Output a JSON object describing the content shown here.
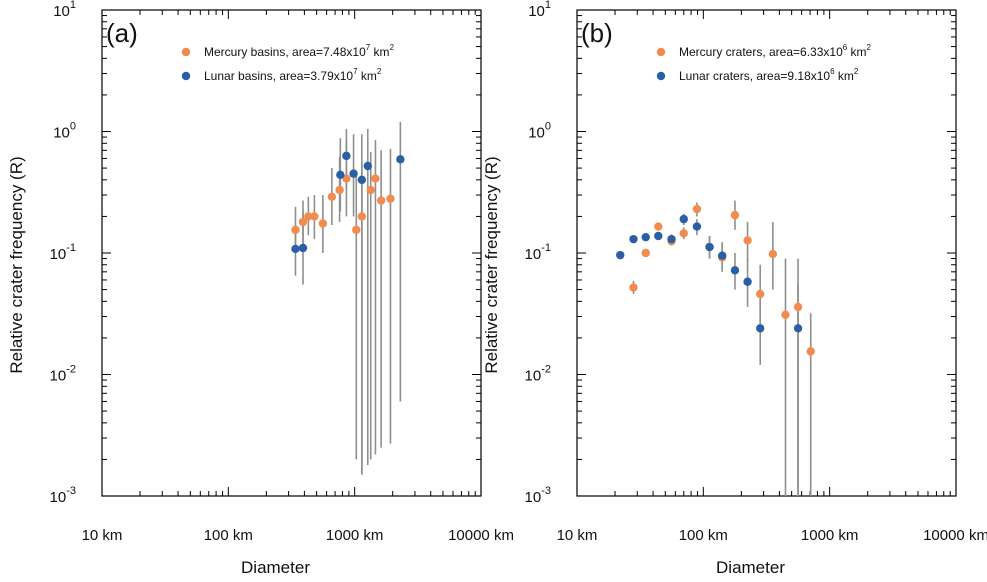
{
  "chart_data": [
    {
      "type": "scatter",
      "panel_label": "(a)",
      "xlabel": "Diameter",
      "ylabel": "Relative crater frequency (R)",
      "xscale": "log",
      "yscale": "log",
      "xlim": [
        10,
        10000
      ],
      "ylim": [
        0.001,
        10
      ],
      "x_tick_labels": [
        "10 km",
        "100 km",
        "1000 km",
        "10000 km"
      ],
      "y_tick_labels": [
        {
          "base": "10",
          "exp": "-3"
        },
        {
          "base": "10",
          "exp": "-2"
        },
        {
          "base": "10",
          "exp": "-1"
        },
        {
          "base": "10",
          "exp": "0"
        },
        {
          "base": "10",
          "exp": "1"
        }
      ],
      "legend_position": "top-right",
      "series": [
        {
          "name": "Mercury basins, area=7.48x10⁷ km²",
          "legend": {
            "text": "Mercury basins, area=7.48x10",
            "sup": "7",
            "unit": " km",
            "unit_sup": "2"
          },
          "color": "#f28c4e",
          "points": [
            {
              "x": 340,
              "y": 0.155,
              "lo": 0.1,
              "hi": 0.24
            },
            {
              "x": 390,
              "y": 0.18,
              "lo": 0.12,
              "hi": 0.27
            },
            {
              "x": 430,
              "y": 0.2,
              "lo": 0.14,
              "hi": 0.29
            },
            {
              "x": 480,
              "y": 0.2,
              "lo": 0.13,
              "hi": 0.3
            },
            {
              "x": 560,
              "y": 0.175,
              "lo": 0.1,
              "hi": 0.3
            },
            {
              "x": 660,
              "y": 0.29,
              "lo": 0.17,
              "hi": 0.5
            },
            {
              "x": 760,
              "y": 0.33,
              "lo": 0.18,
              "hi": 0.62
            },
            {
              "x": 860,
              "y": 0.41,
              "lo": 0.2,
              "hi": 0.85
            },
            {
              "x": 1030,
              "y": 0.155,
              "lo": 0.002,
              "hi": 0.45
            },
            {
              "x": 1140,
              "y": 0.2,
              "lo": 0.0015,
              "hi": 0.55
            },
            {
              "x": 1340,
              "y": 0.33,
              "lo": 0.002,
              "hi": 0.68
            },
            {
              "x": 1460,
              "y": 0.41,
              "lo": 0.0022,
              "hi": 0.85
            },
            {
              "x": 1620,
              "y": 0.27,
              "lo": 0.0025,
              "hi": 0.7
            },
            {
              "x": 1920,
              "y": 0.28,
              "lo": 0.0027,
              "hi": 0.72
            }
          ]
        },
        {
          "name": "Lunar basins, area=3.79x10⁷ km²",
          "legend": {
            "text": "Lunar basins, area=3.79x10",
            "sup": "7",
            "unit": " km",
            "unit_sup": "2"
          },
          "color": "#2a5ea6",
          "points": [
            {
              "x": 340,
              "y": 0.108,
              "lo": 0.065,
              "hi": 0.17
            },
            {
              "x": 390,
              "y": 0.11,
              "lo": 0.055,
              "hi": 0.22
            },
            {
              "x": 770,
              "y": 0.44,
              "lo": 0.22,
              "hi": 0.88
            },
            {
              "x": 860,
              "y": 0.63,
              "lo": 0.34,
              "hi": 1.05
            },
            {
              "x": 980,
              "y": 0.45,
              "lo": 0.2,
              "hi": 0.95
            },
            {
              "x": 1140,
              "y": 0.4,
              "lo": 0.0015,
              "hi": 0.95
            },
            {
              "x": 1270,
              "y": 0.52,
              "lo": 0.0018,
              "hi": 1.05
            },
            {
              "x": 2300,
              "y": 0.59,
              "lo": 0.006,
              "hi": 1.2
            }
          ]
        }
      ]
    },
    {
      "type": "scatter",
      "panel_label": "(b)",
      "xlabel": "Diameter",
      "ylabel": "Relative crater frequency (R)",
      "xscale": "log",
      "yscale": "log",
      "xlim": [
        10,
        10000
      ],
      "ylim": [
        0.001,
        10
      ],
      "x_tick_labels": [
        "10 km",
        "100 km",
        "1000 km",
        "10000 km"
      ],
      "y_tick_labels": [
        {
          "base": "10",
          "exp": "-3"
        },
        {
          "base": "10",
          "exp": "-2"
        },
        {
          "base": "10",
          "exp": "-1"
        },
        {
          "base": "10",
          "exp": "0"
        },
        {
          "base": "10",
          "exp": "1"
        }
      ],
      "legend_position": "top-right",
      "series": [
        {
          "name": "Mercury craters, area=6.33x10⁶ km²",
          "legend": {
            "text": "Mercury craters, area=6.33x10",
            "sup": "6",
            "unit": " km",
            "unit_sup": "2"
          },
          "color": "#f28c4e",
          "points": [
            {
              "x": 28,
              "y": 0.052,
              "lo": 0.046,
              "hi": 0.059
            },
            {
              "x": 35,
              "y": 0.1,
              "lo": 0.093,
              "hi": 0.108
            },
            {
              "x": 44,
              "y": 0.165,
              "lo": 0.155,
              "hi": 0.176
            },
            {
              "x": 56,
              "y": 0.125,
              "lo": 0.115,
              "hi": 0.136
            },
            {
              "x": 70,
              "y": 0.145,
              "lo": 0.13,
              "hi": 0.162
            },
            {
              "x": 89,
              "y": 0.23,
              "lo": 0.2,
              "hi": 0.26
            },
            {
              "x": 112,
              "y": 0.112,
              "lo": 0.09,
              "hi": 0.138
            },
            {
              "x": 141,
              "y": 0.092,
              "lo": 0.07,
              "hi": 0.118
            },
            {
              "x": 178,
              "y": 0.205,
              "lo": 0.155,
              "hi": 0.27
            },
            {
              "x": 224,
              "y": 0.127,
              "lo": 0.085,
              "hi": 0.18
            },
            {
              "x": 282,
              "y": 0.046,
              "lo": 0.025,
              "hi": 0.08
            },
            {
              "x": 355,
              "y": 0.098,
              "lo": 0.05,
              "hi": 0.18
            },
            {
              "x": 447,
              "y": 0.031,
              "lo": 0.001,
              "hi": 0.09
            },
            {
              "x": 562,
              "y": 0.036,
              "lo": 0.001,
              "hi": 0.09
            },
            {
              "x": 708,
              "y": 0.0155,
              "lo": 0.001,
              "hi": 0.032
            }
          ]
        },
        {
          "name": "Lunar craters, area=9.18x10⁶ km²",
          "legend": {
            "text": "Lunar craters, area=9.18x10",
            "sup": "6",
            "unit": " km",
            "unit_sup": "2"
          },
          "color": "#2a5ea6",
          "points": [
            {
              "x": 22,
              "y": 0.096,
              "lo": 0.09,
              "hi": 0.102
            },
            {
              "x": 28,
              "y": 0.13,
              "lo": 0.122,
              "hi": 0.138
            },
            {
              "x": 35,
              "y": 0.135,
              "lo": 0.127,
              "hi": 0.143
            },
            {
              "x": 44,
              "y": 0.138,
              "lo": 0.129,
              "hi": 0.148
            },
            {
              "x": 56,
              "y": 0.13,
              "lo": 0.119,
              "hi": 0.142
            },
            {
              "x": 70,
              "y": 0.19,
              "lo": 0.17,
              "hi": 0.21
            },
            {
              "x": 89,
              "y": 0.165,
              "lo": 0.14,
              "hi": 0.19
            },
            {
              "x": 112,
              "y": 0.112,
              "lo": 0.09,
              "hi": 0.138
            },
            {
              "x": 141,
              "y": 0.095,
              "lo": 0.072,
              "hi": 0.123
            },
            {
              "x": 178,
              "y": 0.072,
              "lo": 0.05,
              "hi": 0.1
            },
            {
              "x": 224,
              "y": 0.058,
              "lo": 0.036,
              "hi": 0.09
            },
            {
              "x": 282,
              "y": 0.024,
              "lo": 0.012,
              "hi": 0.045
            },
            {
              "x": 562,
              "y": 0.024,
              "lo": 0.001,
              "hi": 0.055
            }
          ]
        }
      ]
    }
  ]
}
